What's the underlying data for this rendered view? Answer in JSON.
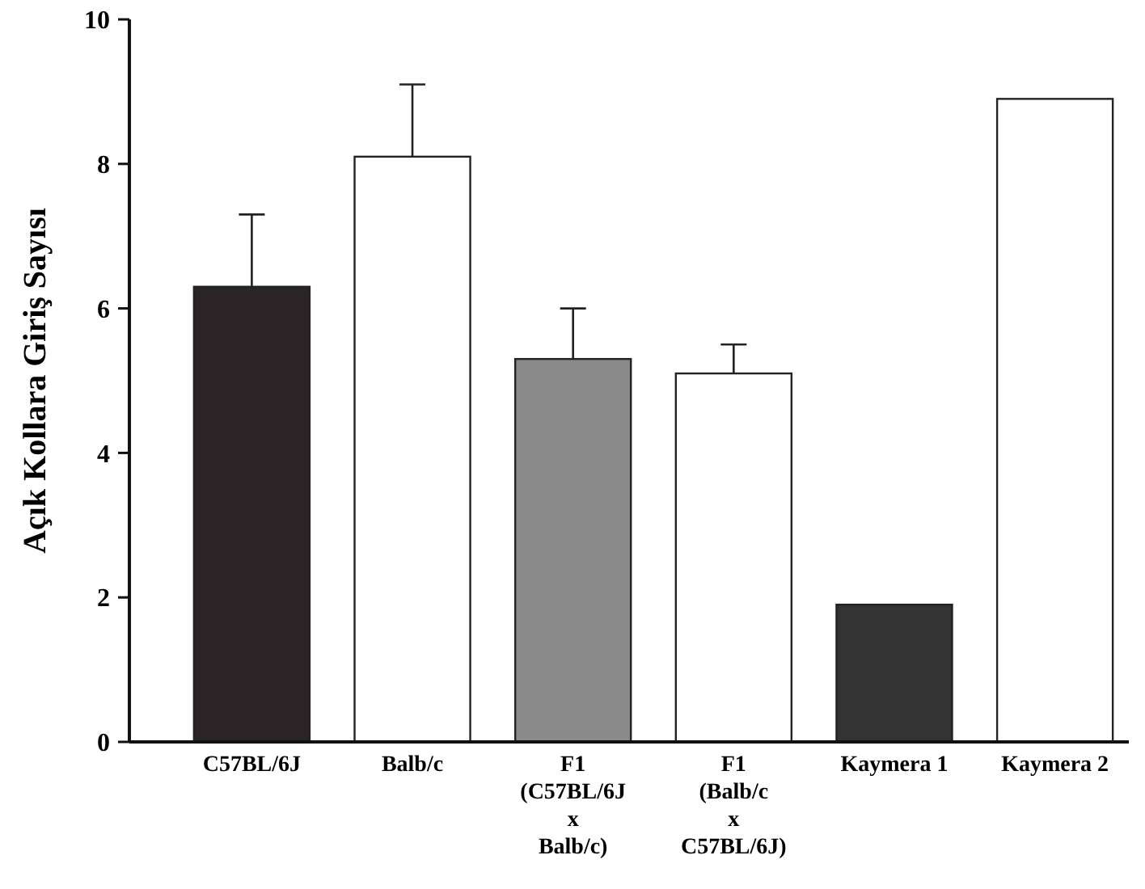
{
  "chart_data": {
    "type": "bar",
    "ylabel": "Açık Kollara Giriş Sayısı",
    "categories": [
      "C57BL/6J",
      "Balb/c",
      "F1\n(C57BL/6J\nx\nBalb/c)",
      "F1\n(Balb/c\nx\nC57BL/6J)",
      "Kaymera 1",
      "Kaymera 2"
    ],
    "values": [
      6.3,
      8.1,
      5.3,
      5.1,
      1.9,
      8.9
    ],
    "errors": [
      1.0,
      1.0,
      0.7,
      0.4,
      null,
      null
    ],
    "colors": [
      "#2b2426",
      "#ffffff",
      "#8a8a8a",
      "#ffffff",
      "#333333",
      "#ffffff"
    ],
    "ylim": [
      0,
      10
    ],
    "yticks": [
      0,
      2,
      4,
      6,
      8,
      10
    ],
    "grid": false
  }
}
